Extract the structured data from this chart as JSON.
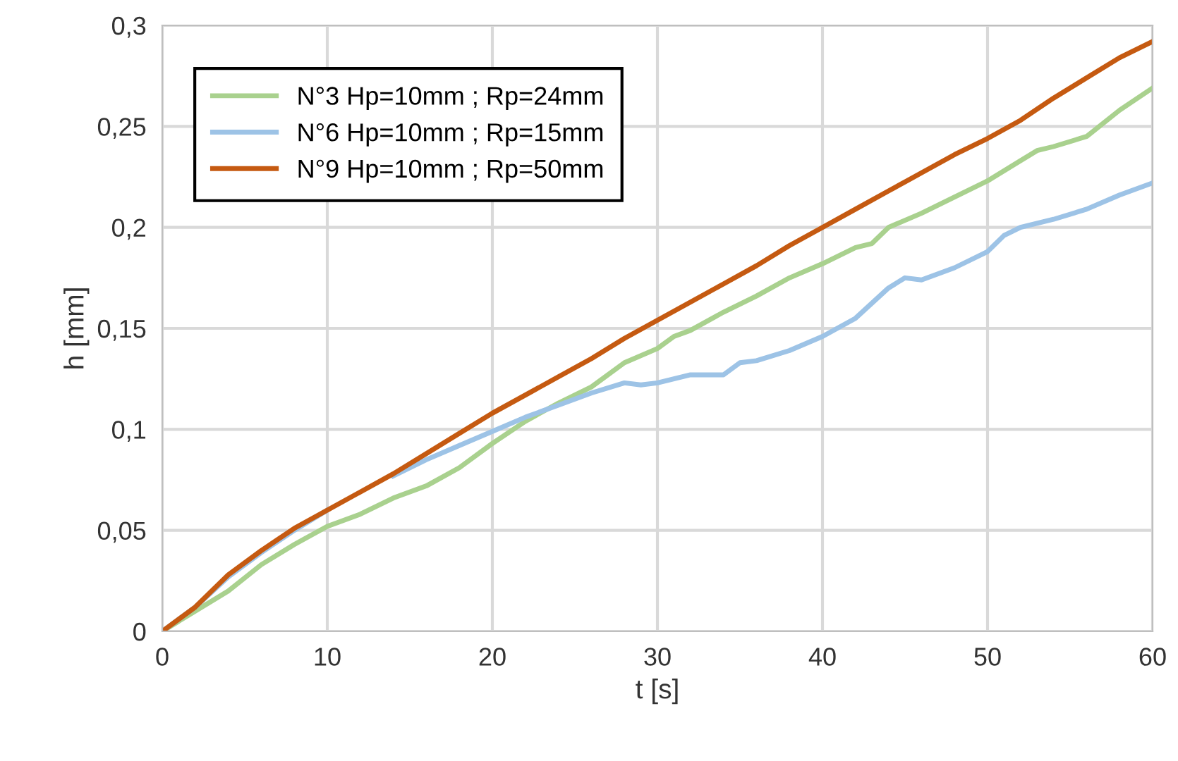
{
  "chart_data": {
    "type": "line",
    "xlabel": "t [s]",
    "ylabel": "h [mm]",
    "xlim": [
      0,
      60
    ],
    "xticks": [
      0,
      10,
      20,
      30,
      40,
      50,
      60
    ],
    "ylim": [
      0,
      0.3
    ],
    "yticks": [
      {
        "value": 0,
        "label": "0"
      },
      {
        "value": 0.05,
        "label": "0,05"
      },
      {
        "value": 0.1,
        "label": "0,1"
      },
      {
        "value": 0.15,
        "label": "0,15"
      },
      {
        "value": 0.2,
        "label": "0,2"
      },
      {
        "value": 0.25,
        "label": "0,25"
      },
      {
        "value": 0.3,
        "label": "0,3"
      }
    ],
    "grid": true,
    "legend": "top left",
    "marker": "none",
    "line_style": "solid",
    "series": [
      {
        "name": "N°3 Hp=10mm ; Rp=24mm",
        "color": "#a9d18e",
        "x": [
          0,
          2,
          4,
          6,
          8,
          10,
          12,
          14,
          16,
          18,
          20,
          22,
          24,
          26,
          28,
          30,
          31,
          32,
          34,
          36,
          38,
          40,
          42,
          43,
          44,
          46,
          48,
          50,
          52,
          53,
          54,
          56,
          58,
          60
        ],
        "values": [
          0,
          0.01,
          0.02,
          0.033,
          0.043,
          0.052,
          0.058,
          0.066,
          0.072,
          0.081,
          0.093,
          0.104,
          0.113,
          0.121,
          0.133,
          0.14,
          0.146,
          0.149,
          0.158,
          0.166,
          0.175,
          0.182,
          0.19,
          0.192,
          0.2,
          0.207,
          0.215,
          0.223,
          0.233,
          0.238,
          0.24,
          0.245,
          0.258,
          0.269
        ]
      },
      {
        "name": "N°6 Hp=10mm ; Rp=15mm",
        "color": "#9dc3e6",
        "x": [
          0,
          2,
          4,
          6,
          8,
          10,
          12,
          14,
          16,
          18,
          20,
          22,
          24,
          26,
          28,
          29,
          30,
          32,
          34,
          35,
          36,
          38,
          40,
          42,
          44,
          45,
          46,
          48,
          50,
          51,
          52,
          54,
          56,
          58,
          60
        ],
        "values": [
          0,
          0.012,
          0.027,
          0.039,
          0.05,
          0.06,
          null,
          0.077,
          0.085,
          0.092,
          0.099,
          0.106,
          0.112,
          0.118,
          0.123,
          0.122,
          0.123,
          0.127,
          0.127,
          0.133,
          0.134,
          0.139,
          0.146,
          0.155,
          0.17,
          0.175,
          0.174,
          0.18,
          0.188,
          0.196,
          0.2,
          0.204,
          0.209,
          0.216,
          0.222
        ]
      },
      {
        "name": "N°9 Hp=10mm ; Rp=50mm",
        "color": "#c55a11",
        "x": [
          0,
          2,
          4,
          6,
          8,
          10,
          12,
          14,
          16,
          18,
          20,
          22,
          24,
          26,
          28,
          30,
          32,
          34,
          36,
          38,
          40,
          42,
          44,
          46,
          48,
          50,
          52,
          54,
          56,
          58,
          60
        ],
        "values": [
          0,
          0.012,
          0.028,
          0.04,
          0.051,
          0.06,
          0.069,
          0.078,
          0.088,
          0.098,
          0.108,
          0.117,
          0.126,
          0.135,
          0.145,
          0.154,
          0.163,
          0.172,
          0.181,
          0.191,
          0.2,
          0.209,
          0.218,
          0.227,
          0.236,
          0.244,
          0.253,
          0.264,
          0.274,
          0.284,
          0.292
        ]
      }
    ]
  }
}
